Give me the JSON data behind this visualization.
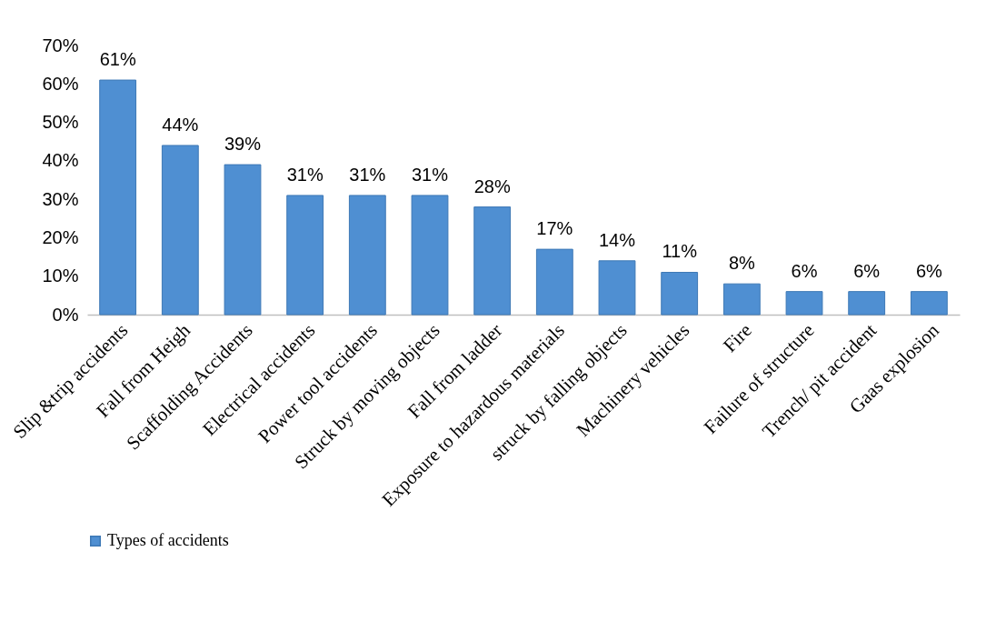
{
  "chart_data": {
    "type": "bar",
    "categories": [
      "Slip &trip accidents",
      "Fall from Heigh",
      "Scaffolding Accidents",
      "Electrical accidents",
      "Power tool accidents",
      "Struck by moving objects",
      "Fall from ladder",
      "Exposure to hazardous materials",
      "struck by falling objects",
      "Machinery vehicles",
      "Fire",
      "Failure of structure",
      "Trench/  pit accident",
      "Gaas explosion"
    ],
    "series": [
      {
        "name": "Types of accidents",
        "color": "#4f8fd2",
        "values": [
          61,
          44,
          39,
          31,
          31,
          31,
          28,
          17,
          14,
          11,
          8,
          6,
          6,
          6
        ],
        "value_labels": [
          "61%",
          "44%",
          "39%",
          "31%",
          "31%",
          "31%",
          "28%",
          "17%",
          "14%",
          "11%",
          "8%",
          "6%",
          "6%",
          "6%"
        ]
      }
    ],
    "ylim": [
      0,
      70
    ],
    "yticks": [
      {
        "value": 0,
        "label": "0%"
      },
      {
        "value": 10,
        "label": "10%"
      },
      {
        "value": 20,
        "label": "20%"
      },
      {
        "value": 30,
        "label": "30%"
      },
      {
        "value": 40,
        "label": "40%"
      },
      {
        "value": 50,
        "label": "50%"
      },
      {
        "value": 60,
        "label": "60%"
      },
      {
        "value": 70,
        "label": "70%"
      }
    ],
    "grid": false,
    "legend": "bottom"
  }
}
